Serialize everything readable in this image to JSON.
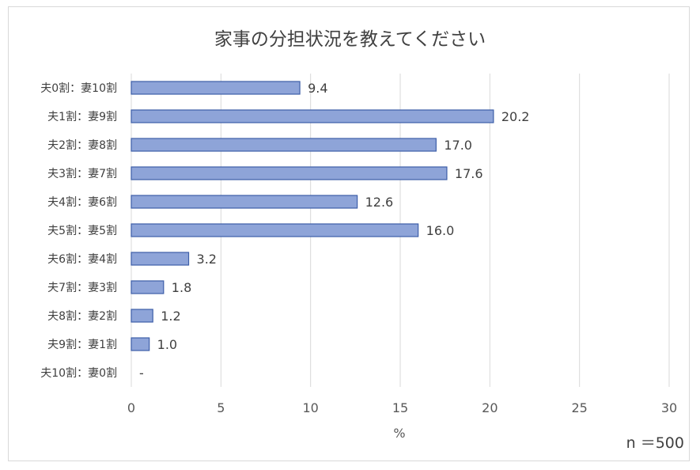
{
  "chart_data": {
    "type": "bar",
    "orientation": "horizontal",
    "title": "家事の分担状況を教えてください",
    "xlabel": "%",
    "ylabel": "",
    "xlim": [
      0,
      30
    ],
    "ticks": [
      "0",
      "5",
      "10",
      "15",
      "20",
      "25",
      "30"
    ],
    "grid": true,
    "legend": "none",
    "bar_color": "#8ea4d8",
    "bar_border": "#3d5ea8",
    "categories": [
      "夫0割：妻10割",
      "夫1割：妻9割",
      "夫2割：妻8割",
      "夫3割：妻7割",
      "夫4割：妻6割",
      "夫5割：妻5割",
      "夫6割：妻4割",
      "夫7割：妻3割",
      "夫8割：妻2割",
      "夫9割：妻1割",
      "夫10割：妻0割"
    ],
    "values": [
      9.4,
      20.2,
      17.0,
      17.6,
      12.6,
      16.0,
      3.2,
      1.8,
      1.2,
      1.0,
      0
    ],
    "value_labels": [
      "9.4",
      "20.2",
      "17.0",
      "17.6",
      "12.6",
      "16.0",
      "3.2",
      "1.8",
      "1.2",
      "1.0",
      "-"
    ]
  },
  "note": "n ＝500"
}
